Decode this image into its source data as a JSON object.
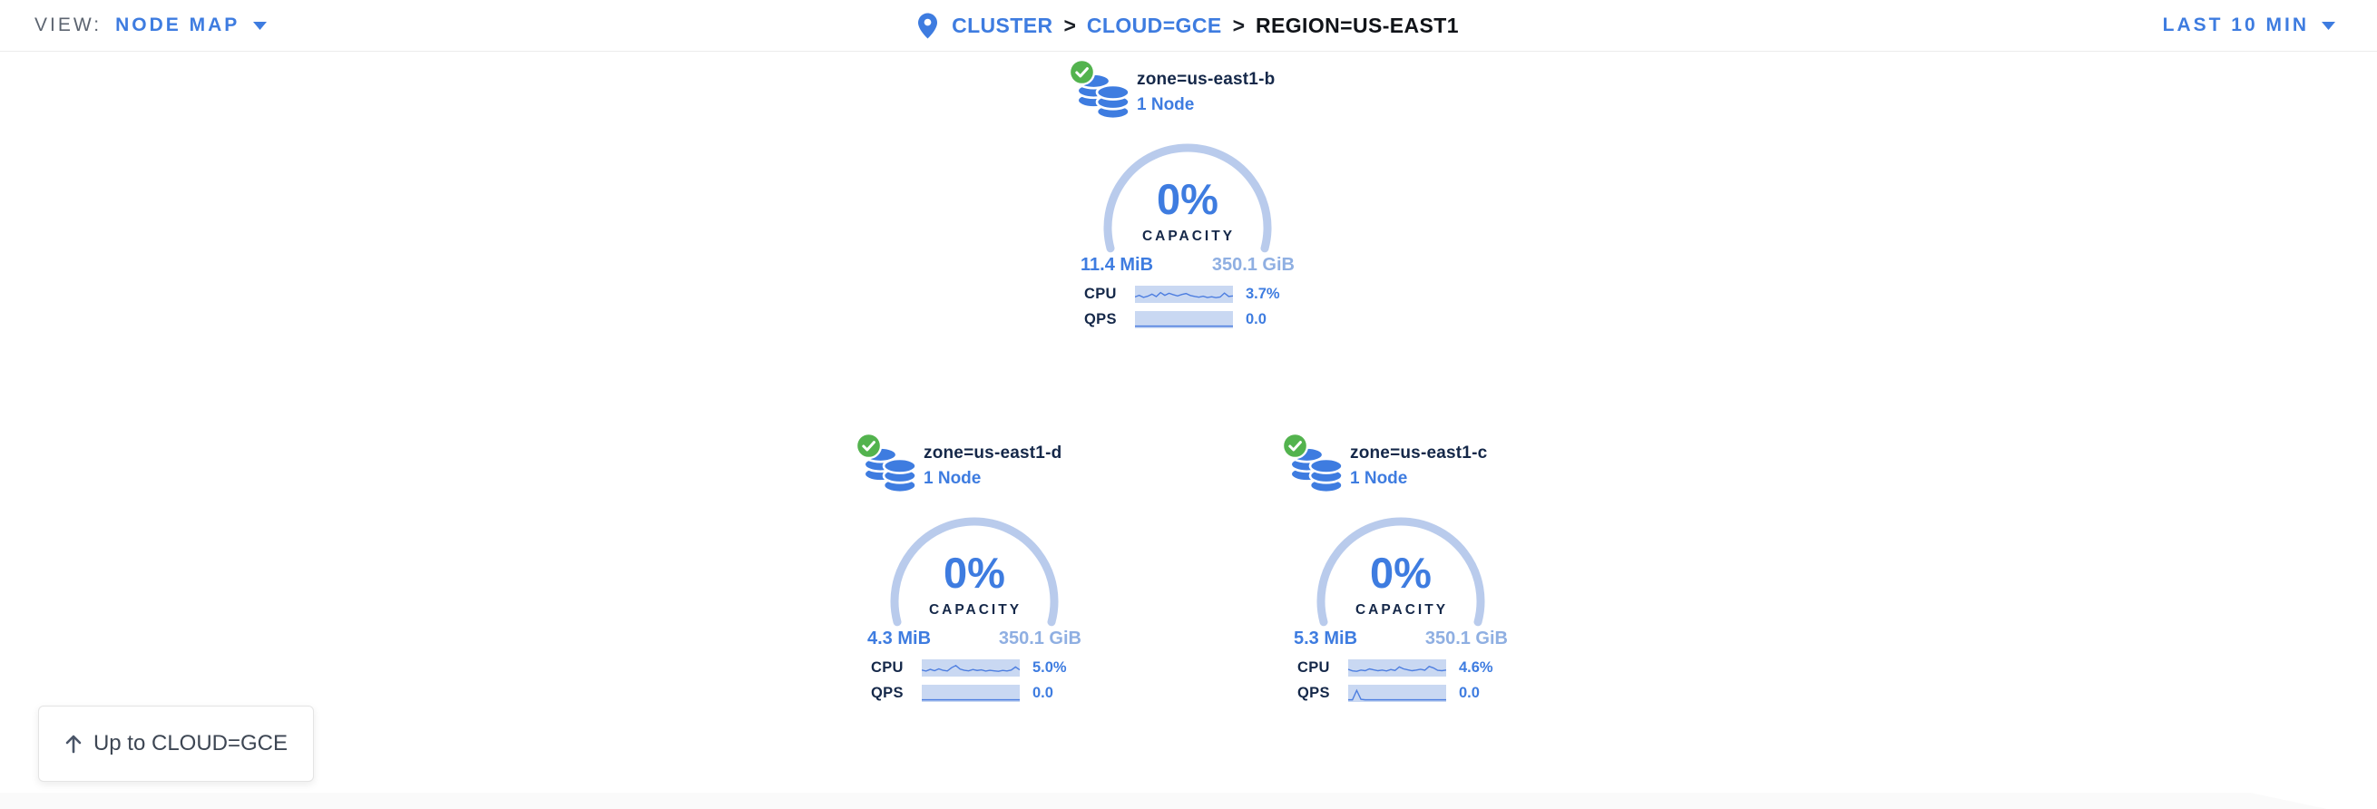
{
  "toolbar": {
    "view_label": "VIEW:",
    "view_value": "NODE MAP",
    "time_range": "LAST 10 MIN"
  },
  "breadcrumb": {
    "separator": ">",
    "items": [
      {
        "label": "CLUSTER"
      },
      {
        "label": "CLOUD=GCE"
      },
      {
        "label": "REGION=US-EAST1"
      }
    ]
  },
  "labels": {
    "capacity": "CAPACITY",
    "cpu": "CPU",
    "qps": "QPS"
  },
  "zones": [
    {
      "name": "zone=us-east1-b",
      "nodes": "1 Node",
      "capacity_pct": "0%",
      "used": "11.4 MiB",
      "total": "350.1 GiB",
      "cpu_value": "3.7%",
      "qps_value": "0.0",
      "cpu_spark": [
        0.32,
        0.45,
        0.28,
        0.38,
        0.55,
        0.35,
        0.68,
        0.45,
        0.62,
        0.5,
        0.4,
        0.52,
        0.6,
        0.44,
        0.36,
        0.3,
        0.38,
        0.27,
        0.33,
        0.26,
        0.31,
        0.64,
        0.36,
        0.4
      ],
      "qps_spark": [
        0,
        0,
        0,
        0,
        0,
        0,
        0,
        0,
        0,
        0,
        0,
        0,
        0,
        0,
        0,
        0,
        0,
        0,
        0,
        0,
        0,
        0,
        0,
        0
      ]
    },
    {
      "name": "zone=us-east1-d",
      "nodes": "1 Node",
      "capacity_pct": "0%",
      "used": "4.3 MiB",
      "total": "350.1 GiB",
      "cpu_value": "5.0%",
      "qps_value": "0.0",
      "cpu_spark": [
        0.36,
        0.28,
        0.42,
        0.31,
        0.46,
        0.34,
        0.29,
        0.56,
        0.74,
        0.44,
        0.34,
        0.3,
        0.41,
        0.33,
        0.38,
        0.28,
        0.34,
        0.3,
        0.26,
        0.33,
        0.29,
        0.36,
        0.62,
        0.38
      ],
      "qps_spark": [
        0,
        0,
        0,
        0,
        0,
        0,
        0,
        0,
        0,
        0,
        0,
        0,
        0,
        0,
        0,
        0,
        0,
        0,
        0,
        0,
        0,
        0,
        0,
        0
      ]
    },
    {
      "name": "zone=us-east1-c",
      "nodes": "1 Node",
      "capacity_pct": "0%",
      "used": "5.3 MiB",
      "total": "350.1 GiB",
      "cpu_value": "4.6%",
      "qps_value": "0.0",
      "cpu_spark": [
        0.42,
        0.3,
        0.26,
        0.36,
        0.31,
        0.46,
        0.38,
        0.31,
        0.36,
        0.29,
        0.41,
        0.33,
        0.62,
        0.46,
        0.38,
        0.31,
        0.36,
        0.43,
        0.35,
        0.66,
        0.54,
        0.34,
        0.31,
        0.36
      ],
      "qps_spark": [
        0,
        0,
        0.78,
        0.04,
        0,
        0,
        0,
        0,
        0,
        0,
        0,
        0,
        0,
        0,
        0,
        0,
        0,
        0,
        0,
        0,
        0,
        0,
        0,
        0
      ]
    }
  ],
  "up_button": {
    "label": "Up to CLOUD=GCE"
  },
  "colors": {
    "accent_blue": "#3e7ce0",
    "total_light_blue": "#8fafe2",
    "arc_blue": "#b9cbec",
    "spark_band": "#c9d8f2",
    "navy": "#152849",
    "healthy_green": "#53b34e"
  }
}
